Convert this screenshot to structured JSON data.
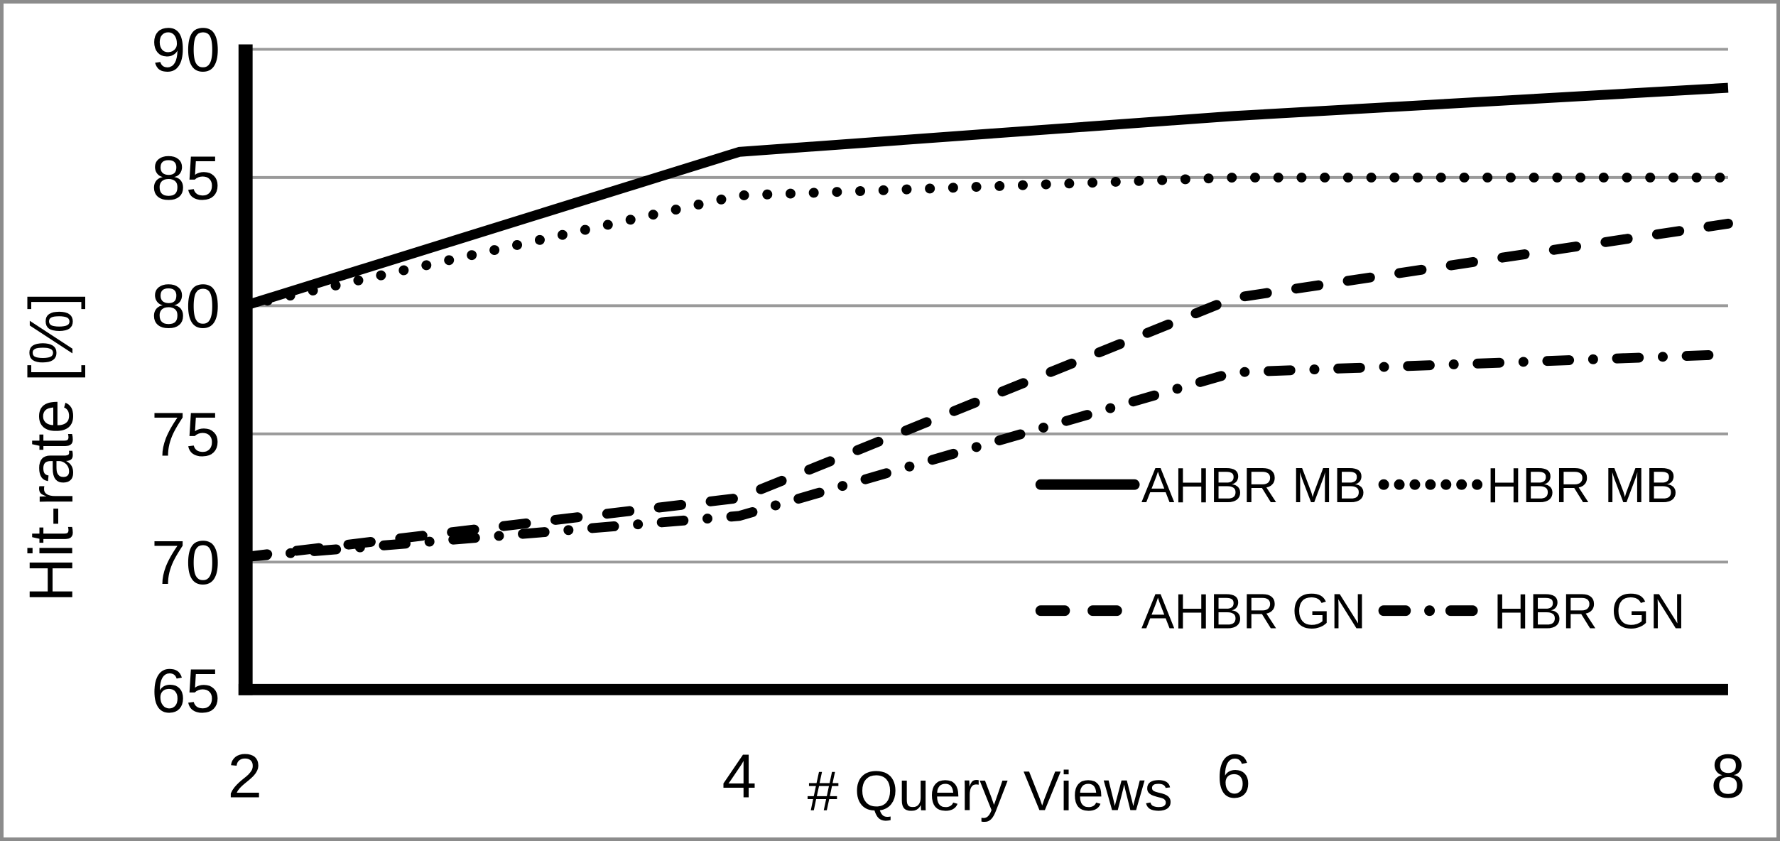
{
  "figure": {
    "background": "#ffffff",
    "frame_border_color": "#8c8c8c",
    "axis_color": "#000000",
    "grid_color": "#9a9a9a",
    "text_color": "#000000"
  },
  "chart_data": {
    "type": "line",
    "title": "",
    "xlabel": "# Query Views",
    "ylabel": "Hit-rate [%]",
    "x": [
      2,
      4,
      6,
      8
    ],
    "xlim": [
      2,
      8
    ],
    "ylim": [
      65,
      90
    ],
    "xticks": [
      "2",
      "4",
      "6",
      "8"
    ],
    "yticks": [
      "90",
      "85",
      "80",
      "75",
      "70",
      "65"
    ],
    "grid": "horizontal gray lines at every 5 units, 70-90",
    "legend_position": "inside lower right, 2 rows x 2 columns",
    "line_color": "#000000",
    "series": [
      {
        "name": "AHBR MB",
        "style": "solid",
        "values": [
          80,
          86,
          87.4,
          88.5
        ]
      },
      {
        "name": "HBR MB",
        "style": "dotted",
        "values": [
          80,
          84.3,
          85,
          85
        ]
      },
      {
        "name": "AHBR GN",
        "style": "dashed",
        "values": [
          70.2,
          72.5,
          80.3,
          83.2
        ]
      },
      {
        "name": "HBR GN",
        "style": "dashdot",
        "values": [
          70.2,
          71.8,
          77.4,
          78.1
        ]
      }
    ]
  }
}
